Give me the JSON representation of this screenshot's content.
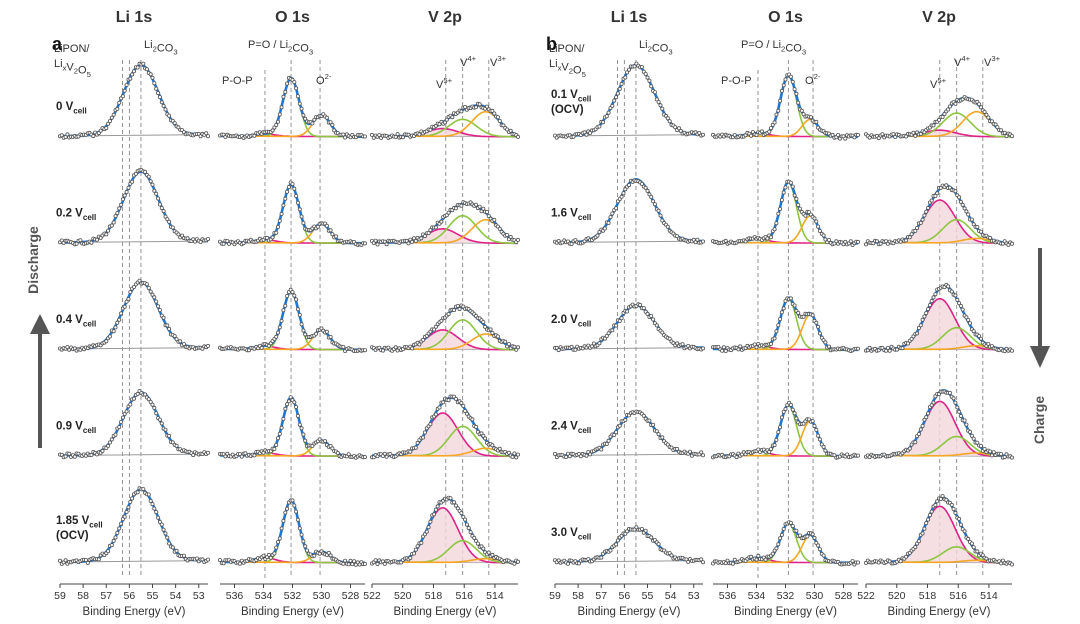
{
  "figure": {
    "columns": [
      {
        "key": "li",
        "title": "Li 1s"
      },
      {
        "key": "o",
        "title": "O 1s"
      },
      {
        "key": "v",
        "title": "V 2p"
      }
    ],
    "xlabel": "Binding Energy (eV)",
    "annotations": {
      "li": {
        "left1": "LiPON/",
        "left2a": "Li",
        "left2sub": "x",
        "left2b": "V",
        "left2sub2": "2",
        "left2c": "O",
        "left2sub3": "5",
        "right": "Li",
        "rightsub": "2",
        "rightb": "CO",
        "rightsub2": "3"
      },
      "o": {
        "top": "P=O / Li",
        "topsub": "2",
        "topb": "CO",
        "topsub2": "3",
        "pop": "P-O-P",
        "o2": "O",
        "o2sup": "2-"
      },
      "v": {
        "v5": "V",
        "v5sup": "5+",
        "v4": "V",
        "v4sup": "4+",
        "v3": "V",
        "v3sup": "3+"
      }
    },
    "axes": {
      "li": {
        "ticks": [
          "59",
          "58",
          "57",
          "56",
          "55",
          "54",
          "53"
        ]
      },
      "o": {
        "ticks": [
          "536",
          "534",
          "532",
          "530",
          "528"
        ]
      },
      "v": {
        "ticks": [
          "522",
          "520",
          "518",
          "516",
          "514"
        ]
      }
    }
  },
  "chart_data": [
    {
      "type": "line",
      "panel": "a",
      "arrow_label": "Discharge",
      "rows": [
        {
          "label": "0 V",
          "sub": "cell",
          "extra": ""
        },
        {
          "label": "0.2 V",
          "sub": "cell",
          "extra": ""
        },
        {
          "label": "0.4 V",
          "sub": "cell",
          "extra": ""
        },
        {
          "label": "0.9 V",
          "sub": "cell",
          "extra": ""
        },
        {
          "label": "1.85 V",
          "sub": "cell",
          "extra": "(OCV)"
        }
      ],
      "li_1s": {
        "xlim": [
          59,
          52.6
        ],
        "peak_center": 55.5,
        "peak_width": 0.75,
        "peak_heights": [
          0.9,
          0.9,
          0.85,
          0.8,
          0.92
        ]
      },
      "o_1s": {
        "xlim": [
          537,
          527
        ],
        "components": [
          {
            "name": "P-O-P",
            "center": 533.9,
            "width": 0.7,
            "color": "#e0218a",
            "heights": [
              0.03,
              0.04,
              0.04,
              0.04,
              0.06
            ]
          },
          {
            "name": "P=O / Li2CO3",
            "center": 532.1,
            "width": 0.55,
            "color": "#8cc63f",
            "heights": [
              0.75,
              0.75,
              0.75,
              0.75,
              0.8
            ]
          },
          {
            "name": "O2-",
            "center": 530.0,
            "width": 0.6,
            "color": "#f5a623",
            "heights": [
              0.28,
              0.25,
              0.25,
              0.2,
              0.14
            ]
          }
        ]
      },
      "v_2p": {
        "xlim": [
          522,
          512.5
        ],
        "components": [
          {
            "name": "V5+",
            "center": 517.4,
            "width": 1.0,
            "color": "#e0218a",
            "heights": [
              0.1,
              0.18,
              0.25,
              0.55,
              0.7
            ]
          },
          {
            "name": "V4+",
            "center": 516.1,
            "width": 0.9,
            "color": "#8cc63f",
            "heights": [
              0.22,
              0.35,
              0.38,
              0.38,
              0.28
            ]
          },
          {
            "name": "V3+",
            "center": 514.6,
            "width": 0.9,
            "color": "#f5a623",
            "heights": [
              0.32,
              0.3,
              0.2,
              0.1,
              0.05
            ]
          }
        ]
      }
    },
    {
      "type": "line",
      "panel": "b",
      "arrow_label": "Charge",
      "rows": [
        {
          "label": "0.1 V",
          "sub": "cell",
          "extra": "(OCV)"
        },
        {
          "label": "1.6 V",
          "sub": "cell",
          "extra": ""
        },
        {
          "label": "2.0 V",
          "sub": "cell",
          "extra": ""
        },
        {
          "label": "2.4 V",
          "sub": "cell",
          "extra": ""
        },
        {
          "label": "3.0 V",
          "sub": "cell",
          "extra": ""
        }
      ],
      "li_1s": {
        "xlim": [
          59,
          52.6
        ],
        "peak_center": 55.5,
        "peak_width": 0.8,
        "peak_heights": [
          0.9,
          0.8,
          0.55,
          0.55,
          0.42
        ]
      },
      "o_1s": {
        "xlim": [
          537,
          527
        ],
        "components": [
          {
            "name": "P-O-P",
            "center": 533.9,
            "width": 0.7,
            "color": "#e0218a",
            "heights": [
              0.04,
              0.05,
              0.05,
              0.06,
              0.06
            ]
          },
          {
            "name": "P=O / Li2CO3",
            "center": 531.8,
            "width": 0.55,
            "color": "#8cc63f",
            "heights": [
              0.78,
              0.78,
              0.65,
              0.65,
              0.5
            ]
          },
          {
            "name": "O2-",
            "center": 530.3,
            "width": 0.55,
            "color": "#f5a623",
            "heights": [
              0.22,
              0.35,
              0.45,
              0.45,
              0.35
            ]
          }
        ]
      },
      "v_2p": {
        "xlim": [
          522,
          512.5
        ],
        "components": [
          {
            "name": "V5+",
            "center": 517.2,
            "width": 1.0,
            "color": "#e0218a",
            "heights": [
              0.08,
              0.55,
              0.65,
              0.7,
              0.72
            ]
          },
          {
            "name": "V4+",
            "center": 516.1,
            "width": 0.9,
            "color": "#8cc63f",
            "heights": [
              0.3,
              0.3,
              0.28,
              0.25,
              0.2
            ]
          },
          {
            "name": "V3+",
            "center": 514.8,
            "width": 0.9,
            "color": "#f5a623",
            "heights": [
              0.32,
              0.06,
              0.05,
              0.04,
              0.03
            ]
          }
        ]
      }
    }
  ],
  "colors": {
    "envelope": "#1f77d4",
    "points": "#555555",
    "baseline": "#999999",
    "refline": "#888888",
    "arrow": "#555555",
    "v5fill": "#f4d7dc"
  }
}
